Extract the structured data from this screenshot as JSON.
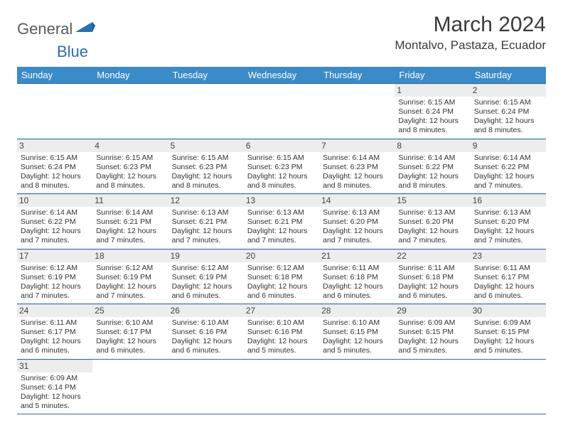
{
  "brand": {
    "text1": "General",
    "text2": "Blue"
  },
  "title": "March 2024",
  "location": "Montalvo, Pastaza, Ecuador",
  "colors": {
    "header_bg": "#3b8bc8",
    "header_fg": "#ffffff",
    "row_border": "#2a6fb0",
    "daynum_bg": "#ededed",
    "text": "#333333"
  },
  "weekdays": [
    "Sunday",
    "Monday",
    "Tuesday",
    "Wednesday",
    "Thursday",
    "Friday",
    "Saturday"
  ],
  "weeks": [
    [
      null,
      null,
      null,
      null,
      null,
      {
        "n": "1",
        "sr": "6:15 AM",
        "ss": "6:24 PM",
        "dl": "12 hours and 8 minutes."
      },
      {
        "n": "2",
        "sr": "6:15 AM",
        "ss": "6:24 PM",
        "dl": "12 hours and 8 minutes."
      }
    ],
    [
      {
        "n": "3",
        "sr": "6:15 AM",
        "ss": "6:24 PM",
        "dl": "12 hours and 8 minutes."
      },
      {
        "n": "4",
        "sr": "6:15 AM",
        "ss": "6:23 PM",
        "dl": "12 hours and 8 minutes."
      },
      {
        "n": "5",
        "sr": "6:15 AM",
        "ss": "6:23 PM",
        "dl": "12 hours and 8 minutes."
      },
      {
        "n": "6",
        "sr": "6:15 AM",
        "ss": "6:23 PM",
        "dl": "12 hours and 8 minutes."
      },
      {
        "n": "7",
        "sr": "6:14 AM",
        "ss": "6:23 PM",
        "dl": "12 hours and 8 minutes."
      },
      {
        "n": "8",
        "sr": "6:14 AM",
        "ss": "6:22 PM",
        "dl": "12 hours and 8 minutes."
      },
      {
        "n": "9",
        "sr": "6:14 AM",
        "ss": "6:22 PM",
        "dl": "12 hours and 7 minutes."
      }
    ],
    [
      {
        "n": "10",
        "sr": "6:14 AM",
        "ss": "6:22 PM",
        "dl": "12 hours and 7 minutes."
      },
      {
        "n": "11",
        "sr": "6:14 AM",
        "ss": "6:21 PM",
        "dl": "12 hours and 7 minutes."
      },
      {
        "n": "12",
        "sr": "6:13 AM",
        "ss": "6:21 PM",
        "dl": "12 hours and 7 minutes."
      },
      {
        "n": "13",
        "sr": "6:13 AM",
        "ss": "6:21 PM",
        "dl": "12 hours and 7 minutes."
      },
      {
        "n": "14",
        "sr": "6:13 AM",
        "ss": "6:20 PM",
        "dl": "12 hours and 7 minutes."
      },
      {
        "n": "15",
        "sr": "6:13 AM",
        "ss": "6:20 PM",
        "dl": "12 hours and 7 minutes."
      },
      {
        "n": "16",
        "sr": "6:13 AM",
        "ss": "6:20 PM",
        "dl": "12 hours and 7 minutes."
      }
    ],
    [
      {
        "n": "17",
        "sr": "6:12 AM",
        "ss": "6:19 PM",
        "dl": "12 hours and 7 minutes."
      },
      {
        "n": "18",
        "sr": "6:12 AM",
        "ss": "6:19 PM",
        "dl": "12 hours and 7 minutes."
      },
      {
        "n": "19",
        "sr": "6:12 AM",
        "ss": "6:19 PM",
        "dl": "12 hours and 6 minutes."
      },
      {
        "n": "20",
        "sr": "6:12 AM",
        "ss": "6:18 PM",
        "dl": "12 hours and 6 minutes."
      },
      {
        "n": "21",
        "sr": "6:11 AM",
        "ss": "6:18 PM",
        "dl": "12 hours and 6 minutes."
      },
      {
        "n": "22",
        "sr": "6:11 AM",
        "ss": "6:18 PM",
        "dl": "12 hours and 6 minutes."
      },
      {
        "n": "23",
        "sr": "6:11 AM",
        "ss": "6:17 PM",
        "dl": "12 hours and 6 minutes."
      }
    ],
    [
      {
        "n": "24",
        "sr": "6:11 AM",
        "ss": "6:17 PM",
        "dl": "12 hours and 6 minutes."
      },
      {
        "n": "25",
        "sr": "6:10 AM",
        "ss": "6:17 PM",
        "dl": "12 hours and 6 minutes."
      },
      {
        "n": "26",
        "sr": "6:10 AM",
        "ss": "6:16 PM",
        "dl": "12 hours and 6 minutes."
      },
      {
        "n": "27",
        "sr": "6:10 AM",
        "ss": "6:16 PM",
        "dl": "12 hours and 5 minutes."
      },
      {
        "n": "28",
        "sr": "6:10 AM",
        "ss": "6:15 PM",
        "dl": "12 hours and 5 minutes."
      },
      {
        "n": "29",
        "sr": "6:09 AM",
        "ss": "6:15 PM",
        "dl": "12 hours and 5 minutes."
      },
      {
        "n": "30",
        "sr": "6:09 AM",
        "ss": "6:15 PM",
        "dl": "12 hours and 5 minutes."
      }
    ],
    [
      {
        "n": "31",
        "sr": "6:09 AM",
        "ss": "6:14 PM",
        "dl": "12 hours and 5 minutes."
      },
      null,
      null,
      null,
      null,
      null,
      null
    ]
  ],
  "labels": {
    "sunrise": "Sunrise:",
    "sunset": "Sunset:",
    "daylight": "Daylight:"
  }
}
